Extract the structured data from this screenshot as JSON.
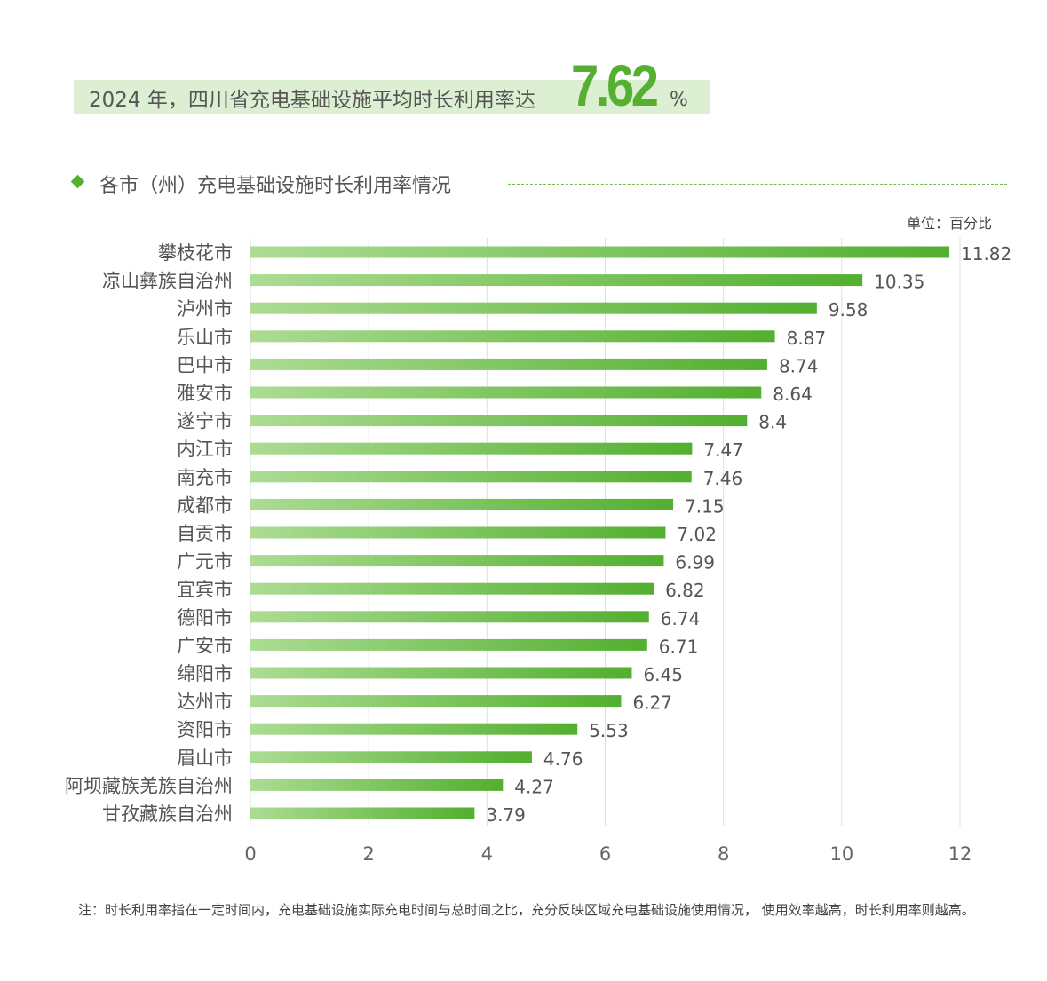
{
  "headline": {
    "text": "2024 年，四川省充电基础设施平均时长利用率达",
    "value": "7.62",
    "unit": "%"
  },
  "section_title": "各市（州）充电基础设施时长利用率情况",
  "unit_label": "单位：百分比",
  "note": "注：时长利用率指在一定时间内，充电基础设施实际充电时间与总时间之比，充分反映区域充电基础设施使用情况， 使用效率越高，时长利用率则越高。",
  "colors": {
    "accent": "#55b032",
    "bar_start": "#acdc93",
    "bar_end": "#52af2f",
    "band": "#dcefd2"
  },
  "chart_data": {
    "type": "bar",
    "orientation": "horizontal",
    "title": "各市（州）充电基础设施时长利用率情况",
    "xlabel": "",
    "ylabel": "",
    "xlim": [
      0,
      12
    ],
    "xticks": [
      0,
      2,
      4,
      6,
      8,
      10,
      12
    ],
    "grid": true,
    "categories": [
      "攀枝花市",
      "凉山彝族自治州",
      "泸州市",
      "乐山市",
      "巴中市",
      "雅安市",
      "遂宁市",
      "内江市",
      "南充市",
      "成都市",
      "自贡市",
      "广元市",
      "宜宾市",
      "德阳市",
      "广安市",
      "绵阳市",
      "达州市",
      "资阳市",
      "眉山市",
      "阿坝藏族羌族自治州",
      "甘孜藏族自治州"
    ],
    "values": [
      11.82,
      10.35,
      9.58,
      8.87,
      8.74,
      8.64,
      8.4,
      7.47,
      7.46,
      7.15,
      7.02,
      6.99,
      6.82,
      6.74,
      6.71,
      6.45,
      6.27,
      5.53,
      4.76,
      4.27,
      3.79
    ]
  }
}
